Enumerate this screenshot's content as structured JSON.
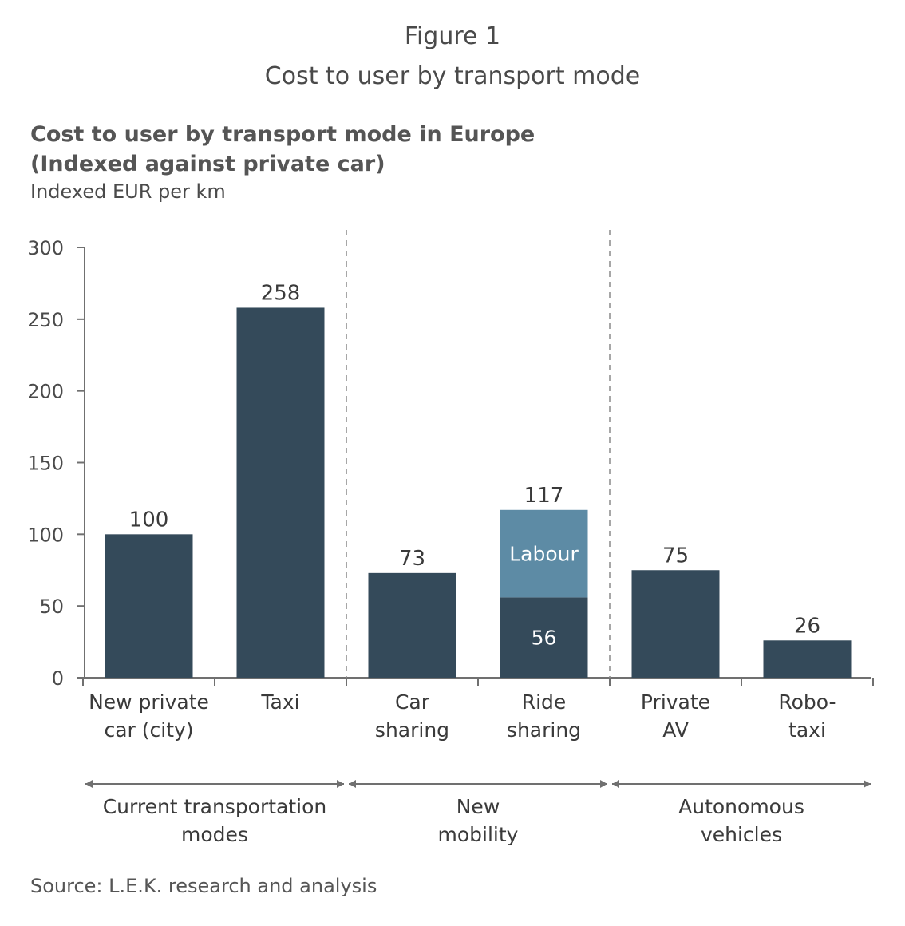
{
  "figure_label": "Figure 1",
  "figure_title": "Cost to user by transport mode",
  "chart_data": {
    "type": "bar",
    "title": "Cost to user by transport mode in Europe",
    "title_line2": "(Indexed against private car)",
    "ylabel": "Indexed EUR per km",
    "ylim": [
      0,
      300
    ],
    "yticks": [
      0,
      50,
      100,
      150,
      200,
      250,
      300
    ],
    "grid": false,
    "categories": [
      [
        "New private",
        "car (city)"
      ],
      [
        "Taxi"
      ],
      [
        "Car",
        "sharing"
      ],
      [
        "Ride",
        "sharing"
      ],
      [
        "Private",
        "AV"
      ],
      [
        "Robo-",
        "taxi"
      ]
    ],
    "series": [
      {
        "values": [
          100,
          258,
          73,
          56,
          75,
          26
        ]
      },
      {
        "name": "Labour",
        "values": [
          0,
          0,
          0,
          61,
          0,
          0
        ]
      }
    ],
    "totals": [
      100,
      258,
      73,
      117,
      75,
      26
    ],
    "segment_value_labels": [
      null,
      null,
      null,
      "56",
      null,
      null
    ],
    "groups": [
      {
        "label": [
          "Current transportation",
          "modes"
        ],
        "categories": [
          0,
          1
        ]
      },
      {
        "label": [
          "New",
          "mobility"
        ],
        "categories": [
          2,
          3
        ]
      },
      {
        "label": [
          "Autonomous",
          "vehicles"
        ],
        "categories": [
          4,
          5
        ]
      }
    ],
    "colors": {
      "base": "#344a5a",
      "labour": "#5d8ba5",
      "axis": "#707070"
    }
  },
  "source": "Source: L.E.K. research and analysis"
}
